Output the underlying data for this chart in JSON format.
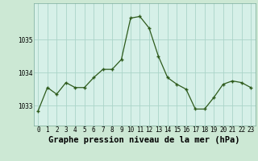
{
  "x": [
    0,
    1,
    2,
    3,
    4,
    5,
    6,
    7,
    8,
    9,
    10,
    11,
    12,
    13,
    14,
    15,
    16,
    17,
    18,
    19,
    20,
    21,
    22,
    23
  ],
  "y": [
    1032.85,
    1033.55,
    1033.35,
    1033.7,
    1033.55,
    1033.55,
    1033.85,
    1034.1,
    1034.1,
    1034.4,
    1035.65,
    1035.7,
    1035.35,
    1034.5,
    1033.85,
    1033.65,
    1033.5,
    1032.9,
    1032.9,
    1033.25,
    1033.65,
    1033.75,
    1033.7,
    1033.55
  ],
  "line_color": "#2d5a1b",
  "marker_color": "#2d5a1b",
  "bg_color": "#cce8d4",
  "plot_bg_color": "#d6f0e8",
  "grid_color": "#aad4c8",
  "xlabel": "Graphe pression niveau de la mer (hPa)",
  "xlabel_fontsize": 7.5,
  "ytick_labels": [
    "1033",
    "1034",
    "1035"
  ],
  "ytick_vals": [
    1033,
    1034,
    1035
  ],
  "xticks": [
    0,
    1,
    2,
    3,
    4,
    5,
    6,
    7,
    8,
    9,
    10,
    11,
    12,
    13,
    14,
    15,
    16,
    17,
    18,
    19,
    20,
    21,
    22,
    23
  ],
  "ylim": [
    1032.4,
    1036.1
  ],
  "xlim": [
    -0.5,
    23.5
  ],
  "tick_fontsize": 5.5
}
